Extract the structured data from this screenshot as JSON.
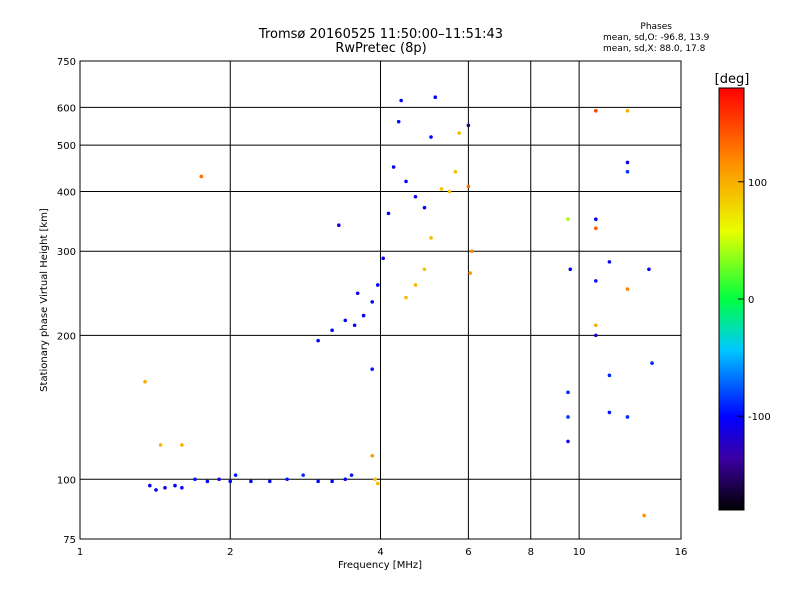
{
  "chart_data": {
    "type": "scatter",
    "title": "Tromsø 20160525 11:50:00–11:51:43",
    "subtitle": "RwPretec (8p)",
    "xlabel": "Frequency [MHz]",
    "ylabel": "Stationary phase Virtual Height [km]",
    "x_scale": "log",
    "y_scale": "log",
    "xlim": [
      1,
      16
    ],
    "ylim": [
      75,
      750
    ],
    "x_ticks": [
      1,
      2,
      4,
      6,
      8,
      10,
      16
    ],
    "x_tick_labels": [
      "1",
      "2",
      "4",
      "6",
      "8",
      "10",
      "16"
    ],
    "y_ticks": [
      75,
      100,
      200,
      300,
      400,
      500,
      600,
      750
    ],
    "y_tick_labels": [
      "75",
      "100",
      "200",
      "300",
      "400",
      "500",
      "600",
      "750"
    ],
    "grid": true,
    "phases_panel": {
      "heading": "Phases",
      "line_o": "mean, sd,O: -96.8, 13.9",
      "line_x": "mean, sd,X:  88.0, 17.8"
    },
    "colorbar": {
      "label": "[deg]",
      "range": [
        -180,
        180
      ],
      "ticks": [
        100,
        0,
        -100
      ],
      "tick_labels": [
        "100",
        "0",
        "-100"
      ]
    },
    "series": [
      {
        "values": [
          {
            "x": 1.38,
            "y": 97,
            "c": -105
          },
          {
            "x": 1.42,
            "y": 95,
            "c": -105
          },
          {
            "x": 1.48,
            "y": 96,
            "c": -110
          },
          {
            "x": 1.55,
            "y": 97,
            "c": -105
          },
          {
            "x": 1.6,
            "y": 96,
            "c": -100
          },
          {
            "x": 1.7,
            "y": 100,
            "c": -95
          },
          {
            "x": 1.8,
            "y": 99,
            "c": -100
          },
          {
            "x": 1.9,
            "y": 100,
            "c": -110
          },
          {
            "x": 2.0,
            "y": 99,
            "c": -100
          },
          {
            "x": 2.05,
            "y": 102,
            "c": -95
          },
          {
            "x": 2.2,
            "y": 99,
            "c": -105
          },
          {
            "x": 2.4,
            "y": 99,
            "c": -100
          },
          {
            "x": 2.6,
            "y": 100,
            "c": -95
          },
          {
            "x": 2.8,
            "y": 102,
            "c": -90
          },
          {
            "x": 3.0,
            "y": 99,
            "c": -100
          },
          {
            "x": 3.2,
            "y": 99,
            "c": -105
          },
          {
            "x": 3.4,
            "y": 100,
            "c": -100
          },
          {
            "x": 3.5,
            "y": 102,
            "c": -95
          },
          {
            "x": 3.0,
            "y": 195,
            "c": -105
          },
          {
            "x": 3.2,
            "y": 205,
            "c": -100
          },
          {
            "x": 3.4,
            "y": 215,
            "c": -100
          },
          {
            "x": 3.55,
            "y": 210,
            "c": -105
          },
          {
            "x": 3.7,
            "y": 220,
            "c": -100
          },
          {
            "x": 3.85,
            "y": 235,
            "c": -100
          },
          {
            "x": 3.95,
            "y": 255,
            "c": -100
          },
          {
            "x": 4.05,
            "y": 290,
            "c": -105
          },
          {
            "x": 4.15,
            "y": 360,
            "c": -100
          },
          {
            "x": 4.25,
            "y": 450,
            "c": -105
          },
          {
            "x": 4.35,
            "y": 560,
            "c": -100
          },
          {
            "x": 4.4,
            "y": 620,
            "c": -105
          },
          {
            "x": 4.5,
            "y": 420,
            "c": -100
          },
          {
            "x": 4.7,
            "y": 390,
            "c": -105
          },
          {
            "x": 4.9,
            "y": 370,
            "c": -100
          },
          {
            "x": 5.05,
            "y": 520,
            "c": -100
          },
          {
            "x": 5.15,
            "y": 630,
            "c": -105
          },
          {
            "x": 4.5,
            "y": 240,
            "c": 92
          },
          {
            "x": 4.7,
            "y": 255,
            "c": 95
          },
          {
            "x": 4.9,
            "y": 275,
            "c": 90
          },
          {
            "x": 5.05,
            "y": 320,
            "c": 92
          },
          {
            "x": 5.3,
            "y": 405,
            "c": 90
          },
          {
            "x": 5.5,
            "y": 400,
            "c": 95
          },
          {
            "x": 5.65,
            "y": 440,
            "c": 90
          },
          {
            "x": 5.75,
            "y": 530,
            "c": 92
          },
          {
            "x": 3.9,
            "y": 100,
            "c": 90
          },
          {
            "x": 3.95,
            "y": 98,
            "c": 95
          },
          {
            "x": 1.35,
            "y": 160,
            "c": 100
          },
          {
            "x": 1.45,
            "y": 118,
            "c": 95
          },
          {
            "x": 1.6,
            "y": 118,
            "c": 100
          },
          {
            "x": 1.75,
            "y": 430,
            "c": 130
          },
          {
            "x": 6.0,
            "y": 410,
            "c": 130
          },
          {
            "x": 6.1,
            "y": 300,
            "c": 120
          },
          {
            "x": 6.05,
            "y": 270,
            "c": 110
          },
          {
            "x": 9.5,
            "y": 350,
            "c": 40
          },
          {
            "x": 9.6,
            "y": 275,
            "c": -100
          },
          {
            "x": 9.5,
            "y": 152,
            "c": -90
          },
          {
            "x": 9.5,
            "y": 135,
            "c": -85
          },
          {
            "x": 9.5,
            "y": 120,
            "c": -110
          },
          {
            "x": 10.8,
            "y": 590,
            "c": 150
          },
          {
            "x": 10.8,
            "y": 350,
            "c": -105
          },
          {
            "x": 10.8,
            "y": 335,
            "c": 140
          },
          {
            "x": 10.8,
            "y": 260,
            "c": -95
          },
          {
            "x": 10.8,
            "y": 210,
            "c": 100
          },
          {
            "x": 10.8,
            "y": 200,
            "c": -120
          },
          {
            "x": 11.5,
            "y": 285,
            "c": -110
          },
          {
            "x": 11.5,
            "y": 165,
            "c": -90
          },
          {
            "x": 11.5,
            "y": 138,
            "c": -95
          },
          {
            "x": 12.5,
            "y": 590,
            "c": 100
          },
          {
            "x": 12.5,
            "y": 460,
            "c": -110
          },
          {
            "x": 12.5,
            "y": 440,
            "c": -85
          },
          {
            "x": 12.5,
            "y": 250,
            "c": 120
          },
          {
            "x": 12.5,
            "y": 135,
            "c": -90
          },
          {
            "x": 13.5,
            "y": 84,
            "c": 115
          },
          {
            "x": 13.8,
            "y": 275,
            "c": -100
          },
          {
            "x": 14.0,
            "y": 175,
            "c": -90
          },
          {
            "x": 6.0,
            "y": 550,
            "c": -150
          },
          {
            "x": 3.3,
            "y": 340,
            "c": -120
          },
          {
            "x": 3.6,
            "y": 245,
            "c": -110
          },
          {
            "x": 3.85,
            "y": 170,
            "c": -95
          },
          {
            "x": 3.85,
            "y": 112,
            "c": 110
          }
        ]
      }
    ]
  }
}
